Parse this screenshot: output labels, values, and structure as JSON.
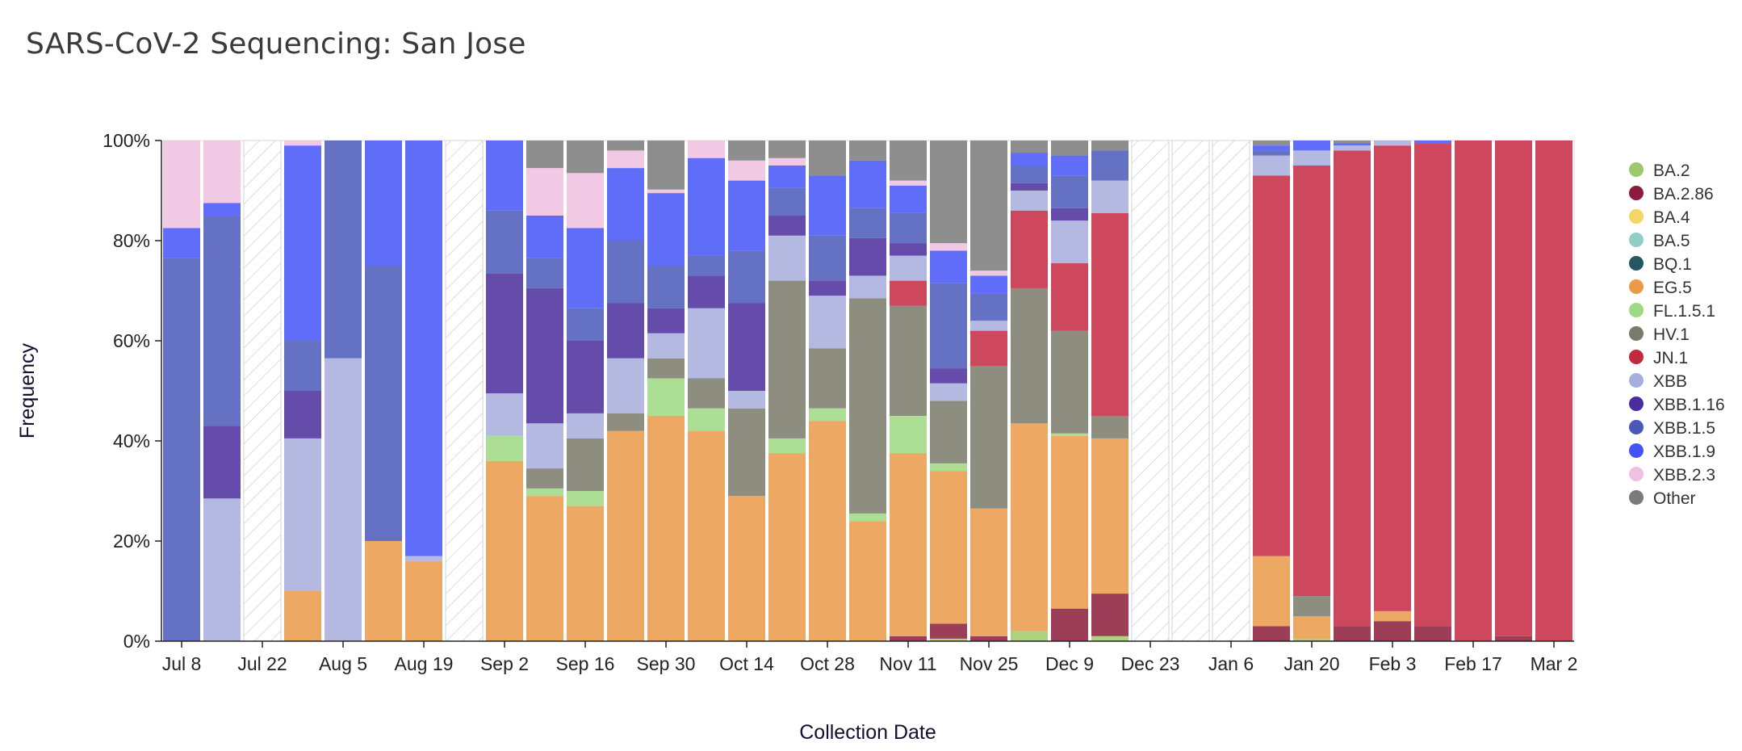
{
  "page": {
    "title": "SARS-CoV-2 Sequencing: San Jose"
  },
  "chart_data": {
    "type": "bar",
    "stacked": true,
    "title": "SARS-CoV-2 Sequencing: San Jose",
    "xlabel": "Collection Date",
    "ylabel": "Frequency",
    "ylim": [
      0,
      100
    ],
    "y_ticks": [
      "0%",
      "20%",
      "40%",
      "60%",
      "80%",
      "100%"
    ],
    "x_ticks": [
      "Jul 8",
      "Jul 22",
      "Aug 5",
      "Aug 19",
      "Sep 2",
      "Sep 16",
      "Sep 30",
      "Oct 14",
      "Oct 28",
      "Nov 11",
      "Nov 25",
      "Dec 9",
      "Dec 23",
      "Jan 6",
      "Jan 20",
      "Feb 3",
      "Feb 17",
      "Mar 2"
    ],
    "legend_position": "right",
    "no_data_pattern": "diagonal hatch",
    "lineages": [
      {
        "name": "BA.2",
        "color": "#9cc96b"
      },
      {
        "name": "BA.2.86",
        "color": "#8c1c3c"
      },
      {
        "name": "BA.4",
        "color": "#f5d565"
      },
      {
        "name": "BA.5",
        "color": "#8fcfc3"
      },
      {
        "name": "BQ.1",
        "color": "#24575f"
      },
      {
        "name": "EG.5",
        "color": "#ea9a48"
      },
      {
        "name": "FL.1.5.1",
        "color": "#9fd882"
      },
      {
        "name": "HV.1",
        "color": "#7a7a6a"
      },
      {
        "name": "JN.1",
        "color": "#c4283f"
      },
      {
        "name": "XBB",
        "color": "#a7addc"
      },
      {
        "name": "XBB.1.16",
        "color": "#4a2d9c"
      },
      {
        "name": "XBB.1.5",
        "color": "#4a58b8"
      },
      {
        "name": "XBB.1.9",
        "color": "#4453f7"
      },
      {
        "name": "XBB.2.3",
        "color": "#efc0e0"
      },
      {
        "name": "Other",
        "color": "#7a7a7a"
      }
    ],
    "weeks": [
      {
        "week": "Jul 8",
        "values": {
          "XBB.1.5": 76.5,
          "XBB.1.9": 6,
          "XBB.2.3": 17.5
        }
      },
      {
        "week": "Jul 15",
        "values": {
          "XBB": 28.5,
          "XBB.1.16": 14.5,
          "XBB.1.5": 42,
          "XBB.1.9": 2.5,
          "XBB.2.3": 12.5
        }
      },
      {
        "week": "Jul 22",
        "no_data": true
      },
      {
        "week": "Jul 29",
        "values": {
          "EG.5": 10,
          "XBB": 30.5,
          "XBB.1.16": 9.5,
          "XBB.1.5": 10,
          "XBB.1.9": 39,
          "XBB.2.3": 1
        }
      },
      {
        "week": "Aug 5",
        "values": {
          "XBB": 56.5,
          "XBB.1.5": 43.5
        }
      },
      {
        "week": "Aug 12",
        "values": {
          "EG.5": 20,
          "XBB.1.5": 55,
          "XBB.1.9": 25
        }
      },
      {
        "week": "Aug 19",
        "values": {
          "EG.5": 16,
          "XBB": 1,
          "XBB.1.9": 83
        }
      },
      {
        "week": "Aug 26",
        "no_data": true
      },
      {
        "week": "Sep 2",
        "values": {
          "FL.1.5.1": 5,
          "EG.5": 36,
          "XBB": 8.5,
          "XBB.1.16": 24,
          "XBB.1.5": 12.5,
          "XBB.1.9": 14
        }
      },
      {
        "week": "Sep 9",
        "values": {
          "FL.1.5.1": 1.5,
          "EG.5": 29,
          "HV.1": 4,
          "XBB": 9,
          "XBB.1.16": 27,
          "XBB.1.5": 6,
          "XBB.1.9": 8.5,
          "XBB.2.3": 9.5,
          "Other": 5.5
        }
      },
      {
        "week": "Sep 16",
        "values": {
          "FL.1.5.1": 3,
          "EG.5": 27,
          "HV.1": 10.5,
          "XBB": 5,
          "XBB.1.16": 14.5,
          "XBB.1.5": 6.5,
          "XBB.1.9": 16,
          "XBB.2.3": 11,
          "Other": 6.5
        }
      },
      {
        "week": "Sep 23",
        "values": {
          "EG.5": 42,
          "HV.1": 3.5,
          "XBB": 11,
          "XBB.1.16": 11,
          "XBB.1.5": 12.5,
          "XBB.1.9": 14.5,
          "XBB.2.3": 3.5,
          "Other": 2
        }
      },
      {
        "week": "Sep 30",
        "values": {
          "EG.5": 45,
          "FL.1.5.1": 7.5,
          "HV.1": 4,
          "XBB": 5,
          "XBB.1.16": 5,
          "XBB.1.5": 8.5,
          "XBB.1.9": 14.5,
          "XBB.2.3": 0.7,
          "Other": 9.8
        }
      },
      {
        "week": "Oct 7",
        "values": {
          "EG.5": 42,
          "FL.1.5.1": 4.5,
          "HV.1": 6,
          "XBB": 14,
          "XBB.1.16": 6.5,
          "XBB.1.5": 4,
          "XBB.1.9": 19.5,
          "XBB.2.3": 3.5
        }
      },
      {
        "week": "Oct 14",
        "values": {
          "EG.5": 29,
          "HV.1": 17.5,
          "XBB": 3.5,
          "XBB.1.16": 17.5,
          "XBB.1.5": 10.5,
          "XBB.1.9": 14,
          "XBB.2.3": 4,
          "Other": 4
        }
      },
      {
        "week": "Oct 21",
        "values": {
          "EG.5": 37.5,
          "FL.1.5.1": 3,
          "HV.1": 31.5,
          "XBB": 9,
          "XBB.1.16": 4,
          "XBB.1.5": 5.5,
          "XBB.1.9": 4.5,
          "XBB.2.3": 1.5,
          "Other": 3.5
        }
      },
      {
        "week": "Oct 28",
        "values": {
          "EG.5": 44,
          "FL.1.5.1": 2.5,
          "HV.1": 12,
          "XBB": 10.5,
          "XBB.1.16": 3,
          "XBB.1.5": 9,
          "XBB.1.9": 12,
          "Other": 7
        }
      },
      {
        "week": "Nov 4",
        "values": {
          "EG.5": 24,
          "FL.1.5.1": 1.5,
          "HV.1": 43,
          "XBB": 4.5,
          "XBB.1.16": 7.5,
          "XBB.1.5": 6,
          "XBB.1.9": 9.5,
          "Other": 4
        }
      },
      {
        "week": "Nov 11",
        "values": {
          "BA.2.86": 1,
          "EG.5": 36.5,
          "FL.1.5.1": 7.5,
          "HV.1": 22,
          "JN.1": 5,
          "XBB": 5,
          "XBB.1.16": 2.5,
          "XBB.1.5": 6,
          "XBB.1.9": 5.5,
          "XBB.2.3": 1,
          "Other": 8
        }
      },
      {
        "week": "Nov 18",
        "values": {
          "BA.2": 0.5,
          "BA.2.86": 3,
          "EG.5": 30.5,
          "FL.1.5.1": 1.5,
          "HV.1": 12.5,
          "XBB": 3.5,
          "XBB.1.16": 3,
          "XBB.1.5": 17,
          "XBB.1.9": 6.5,
          "XBB.2.3": 1.5,
          "Other": 20.5
        }
      },
      {
        "week": "Nov 25",
        "values": {
          "BA.2.86": 1,
          "EG.5": 25.5,
          "HV.1": 28.5,
          "JN.1": 7,
          "XBB": 2,
          "XBB.1.5": 5.5,
          "XBB.1.9": 3.5,
          "XBB.2.3": 1,
          "Other": 26
        }
      },
      {
        "week": "Dec 2",
        "values": {
          "BA.2": 2,
          "EG.5": 41.5,
          "HV.1": 27,
          "JN.1": 15.5,
          "XBB.1.16": 1.5,
          "XBB": 4,
          "XBB.1.5": 3.5,
          "XBB.1.9": 2.5,
          "Other": 2.5
        }
      },
      {
        "week": "Dec 9",
        "values": {
          "BA.2.86": 6.5,
          "EG.5": 34.5,
          "FL.1.5.1": 0.5,
          "HV.1": 20.5,
          "JN.1": 13.5,
          "XBB": 8.5,
          "XBB.1.16": 2.5,
          "XBB.1.5": 6.5,
          "XBB.1.9": 4,
          "Other": 3
        }
      },
      {
        "week": "Dec 16",
        "values": {
          "BA.2": 1,
          "BA.2.86": 8.5,
          "EG.5": 31,
          "HV.1": 4.5,
          "JN.1": 40.5,
          "XBB": 6.5,
          "XBB.1.5": 6,
          "Other": 2
        }
      },
      {
        "week": "Dec 23",
        "no_data": true
      },
      {
        "week": "Dec 30",
        "no_data": true
      },
      {
        "week": "Jan 6",
        "no_data": true
      },
      {
        "week": "Jan 13",
        "values": {
          "BA.2.86": 3,
          "EG.5": 14,
          "JN.1": 76,
          "XBB": 4,
          "XBB.1.5": 1,
          "XBB.1.9": 1,
          "Other": 1
        }
      },
      {
        "week": "Jan 20",
        "values": {
          "BA.2": 0.5,
          "EG.5": 4.5,
          "HV.1": 4,
          "JN.1": 86,
          "XBB": 3,
          "XBB.1.9": 2
        }
      },
      {
        "week": "Jan 27",
        "values": {
          "BA.2.86": 3,
          "JN.1": 95,
          "XBB": 1,
          "XBB.1.9": 0.5,
          "Other": 0.5
        }
      },
      {
        "week": "Feb 3",
        "values": {
          "BA.2.86": 4,
          "EG.5": 2,
          "JN.1": 93,
          "XBB": 1
        }
      },
      {
        "week": "Feb 10",
        "values": {
          "BA.2.86": 3,
          "JN.1": 96.5,
          "XBB.1.9": 0.5
        }
      },
      {
        "week": "Feb 17",
        "values": {
          "JN.1": 100
        }
      },
      {
        "week": "Feb 24",
        "values": {
          "BA.2.86": 1,
          "JN.1": 99
        }
      },
      {
        "week": "Mar 2",
        "values": {
          "JN.1": 100
        }
      }
    ]
  }
}
